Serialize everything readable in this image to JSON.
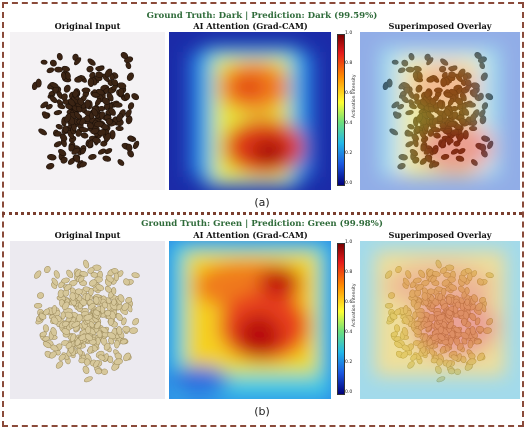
{
  "rows": [
    {
      "header": "Ground Truth: Dark | Prediction: Dark (99.59%)",
      "titles": {
        "original": "Original Input",
        "attention": "AI Attention (Grad-CAM)",
        "overlay": "Superimposed Overlay"
      },
      "colorbar": {
        "ticks": [
          "1.0",
          "0.8",
          "0.6",
          "0.4",
          "0.2",
          "0.0"
        ],
        "label": "Activation Intensity"
      },
      "caption": "(a)"
    },
    {
      "header": "Ground Truth: Green | Prediction: Green (99.98%)",
      "titles": {
        "original": "Original Input",
        "attention": "AI Attention (Grad-CAM)",
        "overlay": "Superimposed Overlay"
      },
      "colorbar": {
        "ticks": [
          "1.0",
          "0.8",
          "0.6",
          "0.4",
          "0.2",
          "0.0"
        ],
        "label": "Activation Intensity"
      },
      "caption": "(b)"
    }
  ],
  "colors": {
    "header_text": "#2f6b3a",
    "border": "#8a4a3a",
    "dark_bean": "#3b2414",
    "green_bean": "#d6c79a"
  }
}
